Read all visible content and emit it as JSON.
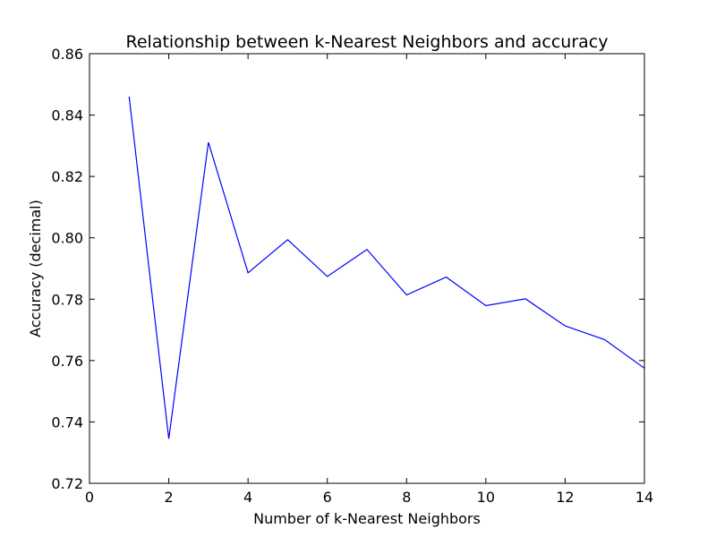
{
  "chart_data": {
    "type": "line",
    "title": "Relationship between k-Nearest Neighbors and accuracy",
    "xlabel": "Number of k-Nearest Neighbors",
    "ylabel": "Accuracy (decimal)",
    "xlim": [
      0,
      14
    ],
    "ylim": [
      0.72,
      0.86
    ],
    "xticks": [
      0,
      2,
      4,
      6,
      8,
      10,
      12,
      14
    ],
    "xtick_labels": [
      "0",
      "2",
      "4",
      "6",
      "8",
      "10",
      "12",
      "14"
    ],
    "yticks": [
      0.72,
      0.74,
      0.76,
      0.78,
      0.8,
      0.82,
      0.84,
      0.86
    ],
    "ytick_labels": [
      "0.72",
      "0.74",
      "0.76",
      "0.78",
      "0.80",
      "0.82",
      "0.84",
      "0.86"
    ],
    "grid": false,
    "series": [
      {
        "color": "#0000ff",
        "x": [
          1,
          2,
          3,
          4,
          5,
          6,
          7,
          8,
          9,
          10,
          11,
          12,
          13,
          14
        ],
        "y": [
          0.846,
          0.7345,
          0.8311,
          0.7886,
          0.7994,
          0.7874,
          0.7962,
          0.7814,
          0.7872,
          0.7779,
          0.7801,
          0.7713,
          0.7668,
          0.7575
        ]
      }
    ]
  }
}
